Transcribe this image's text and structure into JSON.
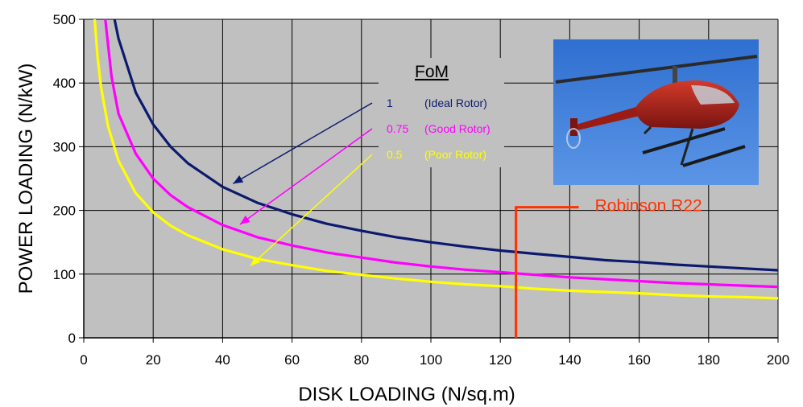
{
  "chart_data": {
    "type": "line",
    "title": "",
    "xlabel": "DISK LOADING (N/sq.m)",
    "ylabel": "POWER LOADING (N/kW)",
    "xlim": [
      0,
      200
    ],
    "ylim": [
      0,
      500
    ],
    "xticks": [
      "0",
      "20",
      "40",
      "60",
      "80",
      "100",
      "120",
      "140",
      "160",
      "180",
      "200"
    ],
    "yticks": [
      "0",
      "100",
      "200",
      "300",
      "400",
      "500"
    ],
    "grid": true,
    "legend_title": "FoM",
    "series": [
      {
        "name": "(Ideal Rotor)",
        "fom": "1",
        "color": "#0b1a6e",
        "x": [
          8.5,
          10,
          15,
          20,
          25,
          30,
          40,
          50,
          60,
          70,
          80,
          90,
          100,
          110,
          120,
          130,
          140,
          150,
          160,
          170,
          180,
          190,
          200
        ],
        "y": [
          510,
          470,
          385,
          335,
          300,
          274,
          237,
          212,
          194,
          179,
          168,
          158,
          150,
          143,
          137,
          132,
          127,
          122,
          119,
          115,
          112,
          109,
          106
        ]
      },
      {
        "name": "(Good Rotor)",
        "fom": "0.75",
        "color": "#ff00ff",
        "x": [
          6,
          8,
          10,
          15,
          20,
          25,
          30,
          40,
          50,
          60,
          70,
          80,
          90,
          100,
          110,
          120,
          130,
          140,
          150,
          160,
          170,
          180,
          190,
          200
        ],
        "y": [
          510,
          410,
          352,
          289,
          250,
          224,
          205,
          177,
          158,
          145,
          134,
          126,
          118,
          112,
          107,
          103,
          99,
          95,
          92,
          89,
          86,
          84,
          82,
          80
        ]
      },
      {
        "name": "(Poor Rotor)",
        "fom": "0.5",
        "color": "#ffff00",
        "x": [
          3,
          4,
          5,
          7,
          10,
          15,
          20,
          25,
          30,
          40,
          50,
          60,
          70,
          80,
          90,
          100,
          110,
          120,
          130,
          140,
          150,
          160,
          170,
          180,
          190,
          200
        ],
        "y": [
          510,
          440,
          393,
          332,
          278,
          227,
          197,
          176,
          161,
          139,
          124,
          114,
          105,
          99,
          93,
          88,
          84,
          81,
          77,
          74,
          72,
          70,
          67,
          65,
          64,
          62
        ]
      }
    ],
    "annotation": {
      "label": "Robinson R22",
      "x": 124.5,
      "y": 205,
      "color": "#ff3300"
    }
  }
}
